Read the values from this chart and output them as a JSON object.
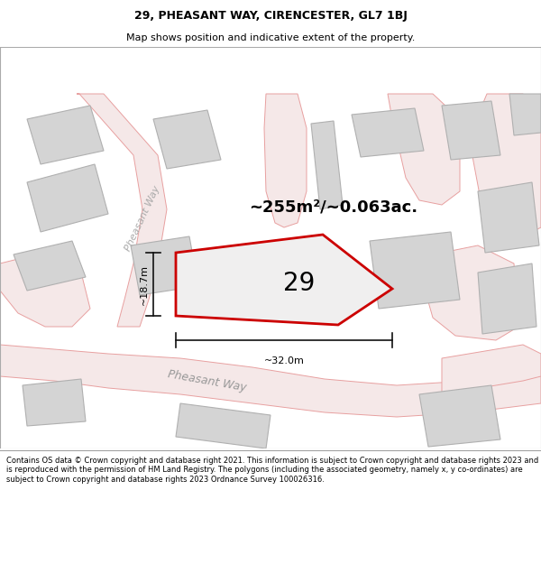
{
  "title_line1": "29, PHEASANT WAY, CIRENCESTER, GL7 1BJ",
  "title_line2": "Map shows position and indicative extent of the property.",
  "footer_text": "Contains OS data © Crown copyright and database right 2021. This information is subject to Crown copyright and database rights 2023 and is reproduced with the permission of HM Land Registry. The polygons (including the associated geometry, namely x, y co-ordinates) are subject to Crown copyright and database rights 2023 Ordnance Survey 100026316.",
  "area_label": "~255m²/~0.063ac.",
  "number_label": "29",
  "width_label": "~32.0m",
  "height_label": "~18.7m",
  "road_color": "#e8a0a0",
  "road_fill": "#f5e8e8",
  "building_fill": "#d4d4d4",
  "building_edge": "#b0b0b0",
  "plot_color": "#cc0000",
  "plot_fill": "#f0efef",
  "dim_line_color": "#111111",
  "map_bg": "#ebebeb",
  "title_fontsize": 9,
  "subtitle_fontsize": 8,
  "area_fontsize": 13,
  "number_fontsize": 20,
  "dim_fontsize": 8,
  "road_label_fontsize": 9,
  "footer_fontsize": 6
}
